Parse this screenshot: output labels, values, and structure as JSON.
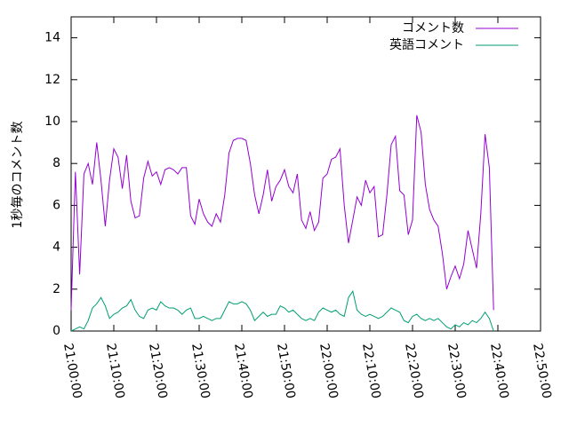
{
  "chart_data": {
    "type": "line",
    "ylabel": "1秒毎のコメント数",
    "x": [
      "21:00:00",
      "21:01:00",
      "21:02:00",
      "21:03:00",
      "21:04:00",
      "21:05:00",
      "21:06:00",
      "21:07:00",
      "21:08:00",
      "21:09:00",
      "21:10:00",
      "21:11:00",
      "21:12:00",
      "21:13:00",
      "21:14:00",
      "21:15:00",
      "21:16:00",
      "21:17:00",
      "21:18:00",
      "21:19:00",
      "21:20:00",
      "21:21:00",
      "21:22:00",
      "21:23:00",
      "21:24:00",
      "21:25:00",
      "21:26:00",
      "21:27:00",
      "21:28:00",
      "21:29:00",
      "21:30:00",
      "21:31:00",
      "21:32:00",
      "21:33:00",
      "21:34:00",
      "21:35:00",
      "21:36:00",
      "21:37:00",
      "21:38:00",
      "21:39:00",
      "21:40:00",
      "21:41:00",
      "21:42:00",
      "21:43:00",
      "21:44:00",
      "21:45:00",
      "21:46:00",
      "21:47:00",
      "21:48:00",
      "21:49:00",
      "21:50:00",
      "21:51:00",
      "21:52:00",
      "21:53:00",
      "21:54:00",
      "21:55:00",
      "21:56:00",
      "21:57:00",
      "21:58:00",
      "21:59:00",
      "22:00:00",
      "22:01:00",
      "22:02:00",
      "22:03:00",
      "22:04:00",
      "22:05:00",
      "22:06:00",
      "22:07:00",
      "22:08:00",
      "22:09:00",
      "22:10:00",
      "22:11:00",
      "22:12:00",
      "22:13:00",
      "22:14:00",
      "22:15:00",
      "22:16:00",
      "22:17:00",
      "22:18:00",
      "22:19:00",
      "22:20:00",
      "22:21:00",
      "22:22:00",
      "22:23:00",
      "22:24:00",
      "22:25:00",
      "22:26:00",
      "22:27:00",
      "22:28:00",
      "22:29:00",
      "22:30:00",
      "22:31:00",
      "22:32:00",
      "22:33:00",
      "22:34:00",
      "22:35:00",
      "22:36:00",
      "22:37:00",
      "22:38:00",
      "22:39:00"
    ],
    "series": [
      {
        "name": "コメント数",
        "color": "#9400d3",
        "values": [
          1.0,
          7.6,
          2.7,
          7.5,
          8.0,
          7.0,
          9.0,
          7.2,
          5.0,
          7.2,
          8.7,
          8.3,
          6.8,
          8.4,
          6.2,
          5.4,
          5.5,
          7.3,
          8.1,
          7.4,
          7.6,
          7.0,
          7.7,
          7.8,
          7.7,
          7.5,
          7.8,
          7.8,
          5.5,
          5.1,
          6.3,
          5.6,
          5.2,
          5.0,
          5.6,
          5.2,
          6.5,
          8.5,
          9.1,
          9.2,
          9.2,
          9.1,
          8.0,
          6.5,
          5.6,
          6.5,
          7.7,
          6.2,
          6.9,
          7.2,
          7.7,
          6.9,
          6.6,
          7.5,
          5.3,
          4.9,
          5.7,
          4.8,
          5.2,
          7.3,
          7.5,
          8.2,
          8.3,
          8.7,
          6.0,
          4.2,
          5.3,
          6.4,
          6.0,
          7.2,
          6.6,
          6.9,
          4.5,
          4.6,
          6.5,
          8.9,
          9.3,
          6.7,
          6.5,
          4.6,
          5.3,
          10.3,
          9.5,
          7.0,
          5.8,
          5.3,
          5.0,
          3.7,
          2.0,
          2.6,
          3.1,
          2.5,
          3.2,
          4.8,
          3.9,
          3.0,
          5.6,
          9.4,
          7.8,
          1.0
        ]
      },
      {
        "name": "英語コメント",
        "color": "#009e73",
        "values": [
          0.0,
          0.1,
          0.2,
          0.1,
          0.5,
          1.1,
          1.3,
          1.6,
          1.2,
          0.6,
          0.8,
          0.9,
          1.1,
          1.2,
          1.5,
          1.0,
          0.7,
          0.6,
          1.0,
          1.1,
          1.0,
          1.4,
          1.2,
          1.1,
          1.1,
          1.0,
          0.8,
          1.0,
          1.1,
          0.6,
          0.6,
          0.7,
          0.6,
          0.5,
          0.6,
          0.6,
          1.0,
          1.4,
          1.3,
          1.3,
          1.4,
          1.3,
          1.0,
          0.5,
          0.7,
          0.9,
          0.7,
          0.8,
          0.8,
          1.2,
          1.1,
          0.9,
          1.0,
          0.8,
          0.6,
          0.5,
          0.6,
          0.5,
          0.9,
          1.1,
          1.0,
          0.9,
          1.0,
          0.8,
          0.7,
          1.6,
          1.9,
          1.0,
          0.8,
          0.7,
          0.8,
          0.7,
          0.6,
          0.7,
          0.9,
          1.1,
          1.0,
          0.9,
          0.5,
          0.4,
          0.7,
          0.8,
          0.6,
          0.5,
          0.6,
          0.5,
          0.6,
          0.4,
          0.2,
          0.1,
          0.3,
          0.2,
          0.4,
          0.3,
          0.5,
          0.4,
          0.6,
          0.9,
          0.6,
          0.0
        ]
      }
    ],
    "xlim": [
      "21:00:00",
      "22:50:00"
    ],
    "xticks": [
      "21:00:00",
      "21:10:00",
      "21:20:00",
      "21:30:00",
      "21:40:00",
      "21:50:00",
      "22:00:00",
      "22:10:00",
      "22:20:00",
      "22:30:00",
      "22:40:00",
      "22:50:00"
    ],
    "ylim": [
      0,
      15
    ],
    "yticks": [
      0,
      2,
      4,
      6,
      8,
      10,
      12,
      14
    ],
    "legend": "top-right"
  }
}
